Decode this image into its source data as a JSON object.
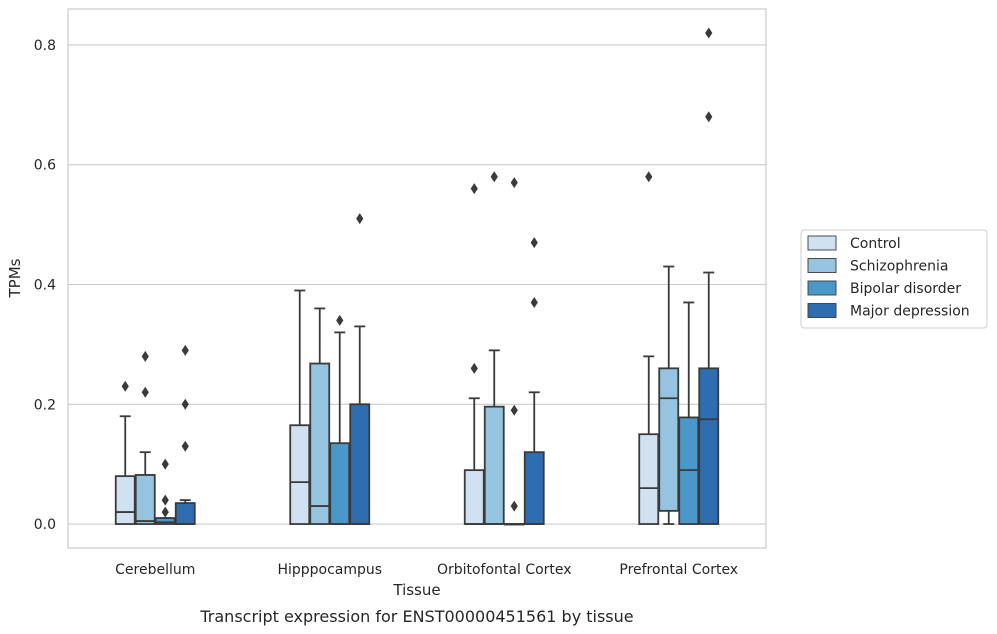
{
  "caption": "Transcript expression for ENST00000451561 by tissue",
  "chart_data": {
    "type": "box",
    "title": "",
    "xlabel": "Tissue",
    "ylabel": "TPMs",
    "ylim": [
      -0.04,
      0.86
    ],
    "yticks": [
      "0.0",
      "0.2",
      "0.4",
      "0.6",
      "0.8"
    ],
    "grid": "horizontal",
    "legend": "right",
    "categories": [
      "Cerebellum",
      "Hipppocampus",
      "Orbitofontal Cortex",
      "Prefrontal Cortex"
    ],
    "series": [
      {
        "name": "Control",
        "color": "#d0e1f2",
        "boxes": [
          {
            "q1": 0.0,
            "median": 0.02,
            "q3": 0.08,
            "whisker_low": 0.0,
            "whisker_high": 0.18,
            "outliers": [
              0.23
            ]
          },
          {
            "q1": 0.0,
            "median": 0.07,
            "q3": 0.165,
            "whisker_low": 0.0,
            "whisker_high": 0.39,
            "outliers": []
          },
          {
            "q1": 0.0,
            "median": 0.0,
            "q3": 0.09,
            "whisker_low": 0.0,
            "whisker_high": 0.21,
            "outliers": [
              0.26,
              0.56
            ]
          },
          {
            "q1": 0.0,
            "median": 0.06,
            "q3": 0.15,
            "whisker_low": 0.0,
            "whisker_high": 0.28,
            "outliers": [
              0.58
            ]
          }
        ]
      },
      {
        "name": "Schizophrenia",
        "color": "#94c4df",
        "boxes": [
          {
            "q1": 0.0,
            "median": 0.005,
            "q3": 0.082,
            "whisker_low": 0.0,
            "whisker_high": 0.12,
            "outliers": [
              0.22,
              0.28
            ]
          },
          {
            "q1": 0.0,
            "median": 0.03,
            "q3": 0.268,
            "whisker_low": 0.0,
            "whisker_high": 0.36,
            "outliers": []
          },
          {
            "q1": 0.0,
            "median": 0.0,
            "q3": 0.196,
            "whisker_low": 0.0,
            "whisker_high": 0.29,
            "outliers": [
              0.58
            ]
          },
          {
            "q1": 0.022,
            "median": 0.21,
            "q3": 0.26,
            "whisker_low": 0.0,
            "whisker_high": 0.43,
            "outliers": []
          }
        ]
      },
      {
        "name": "Bipolar disorder",
        "color": "#4a98c9",
        "boxes": [
          {
            "q1": 0.0,
            "median": 0.003,
            "q3": 0.01,
            "whisker_low": 0.0,
            "whisker_high": 0.01,
            "outliers": [
              0.02,
              0.04,
              0.1
            ]
          },
          {
            "q1": 0.0,
            "median": 0.0,
            "q3": 0.135,
            "whisker_low": 0.0,
            "whisker_high": 0.32,
            "outliers": [
              0.34
            ]
          },
          {
            "q1": 0.0,
            "median": 0.0,
            "q3": 0.0,
            "whisker_low": 0.0,
            "whisker_high": 0.0,
            "outliers": [
              0.03,
              0.19,
              0.57
            ]
          },
          {
            "q1": 0.0,
            "median": 0.09,
            "q3": 0.178,
            "whisker_low": 0.0,
            "whisker_high": 0.37,
            "outliers": []
          }
        ]
      },
      {
        "name": "Major depression",
        "color": "#2e6daf",
        "boxes": [
          {
            "q1": 0.0,
            "median": 0.0,
            "q3": 0.035,
            "whisker_low": 0.0,
            "whisker_high": 0.04,
            "outliers": [
              0.13,
              0.2,
              0.29
            ]
          },
          {
            "q1": 0.0,
            "median": 0.0,
            "q3": 0.2,
            "whisker_low": 0.0,
            "whisker_high": 0.33,
            "outliers": [
              0.51
            ]
          },
          {
            "q1": 0.0,
            "median": 0.0,
            "q3": 0.12,
            "whisker_low": 0.0,
            "whisker_high": 0.22,
            "outliers": [
              0.37,
              0.47
            ]
          },
          {
            "q1": 0.0,
            "median": 0.175,
            "q3": 0.26,
            "whisker_low": 0.0,
            "whisker_high": 0.42,
            "outliers": [
              0.68,
              0.82
            ]
          }
        ]
      }
    ]
  }
}
